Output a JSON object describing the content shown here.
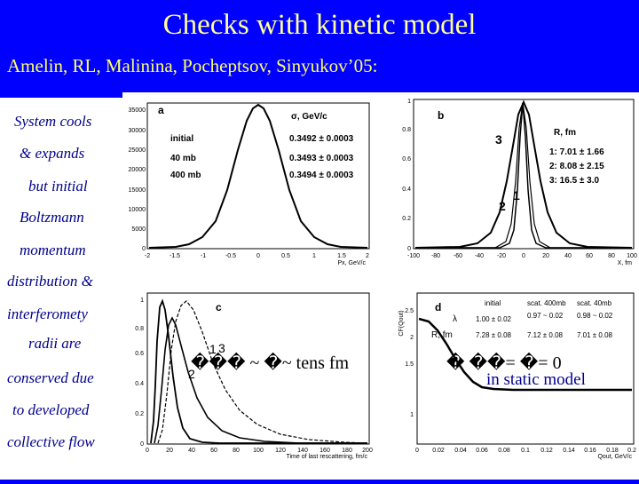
{
  "slide": {
    "title": "Checks with kinetic model",
    "authors": "Amelin, RL, Malinina, Pocheptsov, Sinyukov’05:",
    "side_text": [
      "System cools",
      "& expands",
      "but initial",
      "Boltzmann",
      "momentum",
      "distribution &",
      "interferomety",
      "radii are",
      "conserved due",
      "to developed",
      "collective flow"
    ]
  },
  "annotations": {
    "c_formula": "��� ~ �~ tens fm",
    "d_formula": "� ��= �= 0",
    "d_note": "in static model"
  },
  "colors": {
    "background": "#0000ff",
    "title": "#ffff99",
    "authors": "#ffff66",
    "side_text": "#00008b",
    "formula": "#000000",
    "note": "#00008b"
  },
  "panel_a": {
    "letter": "a",
    "header": "σ, GeV/c",
    "rows": [
      {
        "label": "initial",
        "value": "0.3492 ± 0.0003"
      },
      {
        "label": "40 mb",
        "value": "0.3493 ± 0.0003"
      },
      {
        "label": "400 mb",
        "value": "0.3494 ± 0.0003"
      }
    ],
    "x_ticks": [
      "-2",
      "-1.5",
      "-1",
      "-0.5",
      "0",
      "0.5",
      "1",
      "1.5",
      "2"
    ],
    "y_ticks": [
      "0",
      "5000",
      "10000",
      "15000",
      "20000",
      "25000",
      "30000",
      "35000"
    ],
    "xlabel": "Px, GeV/c"
  },
  "panel_b": {
    "letter": "b",
    "header": "R, fm",
    "rows": [
      "1:  7.01 ± 1.66",
      "2:  8.08 ± 2.15",
      "3:  16.5 ± 3.0"
    ],
    "curve_labels": [
      "3",
      "1",
      "2"
    ],
    "x_ticks": [
      "-100",
      "-80",
      "-60",
      "-40",
      "-20",
      "0",
      "20",
      "40",
      "60",
      "80",
      "100"
    ],
    "y_ticks": [
      "0",
      "0.2",
      "0.4",
      "0.6",
      "0.8",
      "1"
    ],
    "xlabel": "X, fm"
  },
  "panel_c": {
    "letter": "c",
    "curve_labels": [
      "1",
      "3",
      "2"
    ],
    "x_ticks": [
      "0",
      "20",
      "40",
      "60",
      "80",
      "100",
      "120",
      "140",
      "160",
      "180",
      "200"
    ],
    "y_ticks": [
      "0",
      "0.2",
      "0.4",
      "0.6",
      "0.8",
      "1"
    ],
    "xlabel": "Time of last rescattering, fm/c"
  },
  "panel_d": {
    "letter": "d",
    "ylabel": "CF(Qout)",
    "col_headers": [
      "initial",
      "scat. 400mb",
      "scat. 40mb"
    ],
    "rows": [
      {
        "label": "λ",
        "v1": "1.00 ± 0.02",
        "v2": "0.97 ~ 0.02",
        "v3": "0.98 ~ 0.02"
      },
      {
        "label": "R, fm",
        "v1": "7.28 ± 0.08",
        "v2": "7.12 ± 0.08",
        "v3": "7.01 ± 0.08"
      }
    ],
    "x_ticks": [
      "0",
      "0.02",
      "0.04",
      "0.06",
      "0.08",
      "0.1",
      "0.12",
      "0.14",
      "0.16",
      "0.18",
      "0.2"
    ],
    "y_ticks": [
      "1",
      "1.5",
      "2",
      "2.5"
    ],
    "xlabel": "Qout, GeV/c"
  }
}
